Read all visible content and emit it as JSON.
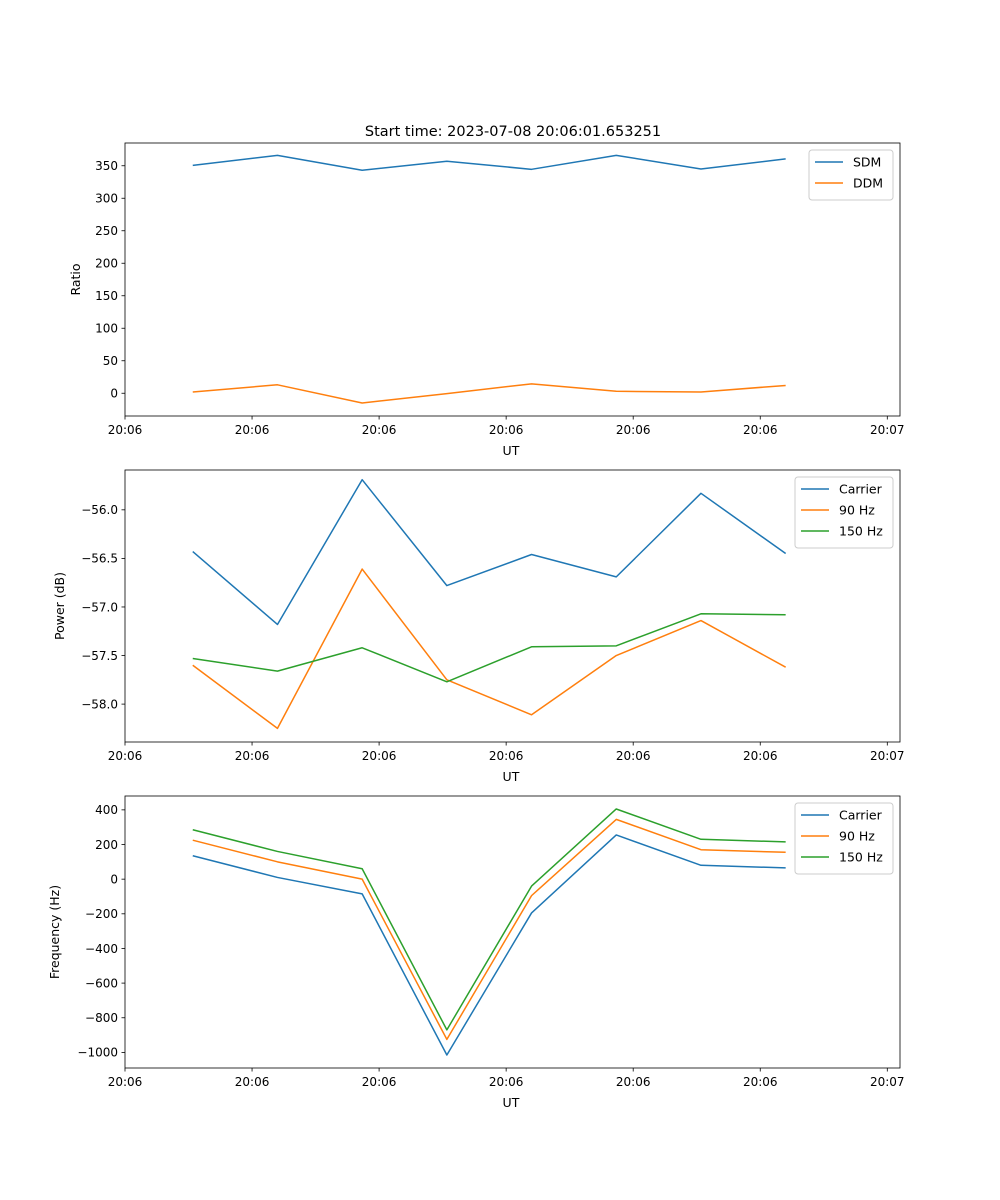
{
  "figure_title": "Start time: 2023-07-08 20:06:01.653251",
  "colors": {
    "blue": "#1f77b4",
    "orange": "#ff7f0e",
    "green": "#2ca02c"
  },
  "chart_data": [
    {
      "type": "line",
      "title": "Start time: 2023-07-08 20:06:01.653251",
      "xlabel": "UT",
      "ylabel": "Ratio",
      "x": [
        1,
        2,
        3,
        4,
        5,
        6,
        7,
        8
      ],
      "xlim": [
        0.2,
        9.35
      ],
      "xticks": [
        0.2,
        1.7,
        3.2,
        4.7,
        6.2,
        7.7,
        9.2
      ],
      "xtick_labels": [
        "20:06",
        "20:06",
        "20:06",
        "20:06",
        "20:06",
        "20:06",
        "20:07"
      ],
      "ylim": [
        -35,
        385
      ],
      "yticks": [
        0,
        50,
        100,
        150,
        200,
        250,
        300,
        350
      ],
      "ytick_labels": [
        "0",
        "50",
        "100",
        "150",
        "200",
        "250",
        "300",
        "350"
      ],
      "legend_position": "top-right",
      "series": [
        {
          "name": "SDM",
          "color": "#1f77b4",
          "values": [
            350.5,
            366,
            343,
            357,
            344.5,
            366,
            345,
            360.5
          ]
        },
        {
          "name": "DDM",
          "color": "#ff7f0e",
          "values": [
            2,
            13,
            -15,
            -0.5,
            14.5,
            3,
            2,
            12
          ]
        }
      ]
    },
    {
      "type": "line",
      "title": "",
      "xlabel": "UT",
      "ylabel": "Power (dB)",
      "x": [
        1,
        2,
        3,
        4,
        5,
        6,
        7,
        8
      ],
      "xlim": [
        0.2,
        9.35
      ],
      "xticks": [
        0.2,
        1.7,
        3.2,
        4.7,
        6.2,
        7.7,
        9.2
      ],
      "xtick_labels": [
        "20:06",
        "20:06",
        "20:06",
        "20:06",
        "20:06",
        "20:06",
        "20:07"
      ],
      "ylim": [
        -58.39,
        -55.59
      ],
      "yticks": [
        -58.0,
        -57.5,
        -57.0,
        -56.5,
        -56.0
      ],
      "ytick_labels": [
        "−58.0",
        "−57.5",
        "−57.0",
        "−56.5",
        "−56.0"
      ],
      "legend_position": "top-right",
      "series": [
        {
          "name": "Carrier",
          "color": "#1f77b4",
          "values": [
            -56.43,
            -57.18,
            -55.69,
            -56.78,
            -56.46,
            -56.69,
            -55.83,
            -56.45
          ]
        },
        {
          "name": "90 Hz",
          "color": "#ff7f0e",
          "values": [
            -57.6,
            -58.25,
            -56.61,
            -57.75,
            -58.11,
            -57.5,
            -57.14,
            -57.62
          ]
        },
        {
          "name": "150 Hz",
          "color": "#2ca02c",
          "values": [
            -57.53,
            -57.66,
            -57.42,
            -57.77,
            -57.41,
            -57.4,
            -57.07,
            -57.08
          ]
        }
      ]
    },
    {
      "type": "line",
      "title": "",
      "xlabel": "UT",
      "ylabel": "Frequency (Hz)",
      "x": [
        1,
        2,
        3,
        4,
        5,
        6,
        7,
        8
      ],
      "xlim": [
        0.2,
        9.35
      ],
      "xticks": [
        0.2,
        1.7,
        3.2,
        4.7,
        6.2,
        7.7,
        9.2
      ],
      "xtick_labels": [
        "20:06",
        "20:06",
        "20:06",
        "20:06",
        "20:06",
        "20:06",
        "20:07"
      ],
      "ylim": [
        -1090,
        480
      ],
      "yticks": [
        -1000,
        -800,
        -600,
        -400,
        -200,
        0,
        200,
        400
      ],
      "ytick_labels": [
        "−1000",
        "−800",
        "−600",
        "−400",
        "−200",
        "0",
        "200",
        "400"
      ],
      "legend_position": "top-right",
      "series": [
        {
          "name": "Carrier",
          "color": "#1f77b4",
          "values": [
            135,
            10,
            -85,
            -1015,
            -195,
            255,
            80,
            65
          ]
        },
        {
          "name": "90 Hz",
          "color": "#ff7f0e",
          "values": [
            225,
            100,
            0,
            -925,
            -95,
            345,
            170,
            155
          ]
        },
        {
          "name": "150 Hz",
          "color": "#2ca02c",
          "values": [
            285,
            160,
            60,
            -870,
            -40,
            405,
            230,
            215
          ]
        }
      ]
    }
  ]
}
